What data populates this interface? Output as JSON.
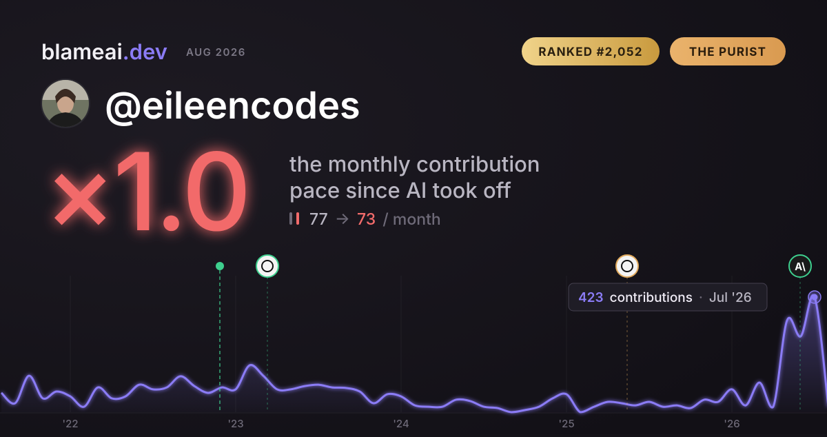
{
  "header": {
    "brand": "blameai",
    "brand_suffix": ".dev",
    "date": "AUG 2026",
    "badges": [
      "RANKED #2,052",
      "THE PURIST"
    ]
  },
  "profile": {
    "username": "@eileencodes"
  },
  "headline": {
    "multiplier": "×1.0",
    "description_lines": [
      "the monthly contribution",
      "pace since AI took off"
    ]
  },
  "pace": {
    "before": 77,
    "arrow": "→",
    "after": 73,
    "unit": "/ month"
  },
  "tooltip": {
    "unit": "contributions",
    "separator": "·",
    "date": "Jul '26"
  },
  "chart_data": {
    "type": "line",
    "color": "#8b7cf6",
    "categories": [
      null,
      null,
      null,
      null,
      null,
      "'22",
      null,
      null,
      null,
      null,
      null,
      null,
      null,
      null,
      null,
      null,
      null,
      "'23",
      null,
      null,
      null,
      null,
      null,
      null,
      null,
      null,
      null,
      null,
      null,
      "'24",
      null,
      null,
      null,
      null,
      null,
      null,
      null,
      null,
      null,
      null,
      null,
      "'25",
      null,
      null,
      null,
      null,
      null,
      null,
      null,
      null,
      null,
      null,
      null,
      "'26",
      null,
      null,
      null,
      null,
      null,
      null,
      null
    ],
    "series": [
      {
        "name": "contributions",
        "color": "#8b7cf6",
        "values": [
          71,
          33,
          134,
          51,
          76,
          58,
          20,
          91,
          51,
          58,
          101,
          84,
          91,
          132,
          96,
          71,
          91,
          84,
          172,
          134,
          84,
          84,
          96,
          101,
          91,
          89,
          76,
          33,
          66,
          58,
          25,
          20,
          20,
          46,
          41,
          20,
          15,
          0,
          8,
          20,
          51,
          66,
          0,
          20,
          38,
          33,
          25,
          38,
          20,
          25,
          15,
          46,
          38,
          84,
          25,
          109,
          20,
          337,
          279,
          423,
          20
        ]
      }
    ]
  }
}
